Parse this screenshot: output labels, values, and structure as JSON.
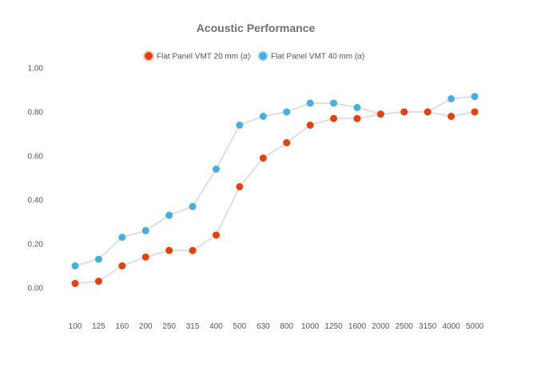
{
  "chart_data": {
    "type": "line",
    "title": "Acoustic Performance",
    "xlabel": "",
    "ylabel": "",
    "ylim": [
      0,
      1
    ],
    "yticks": [
      "0.00",
      "0.20",
      "0.40",
      "0.60",
      "0.80",
      "1.00"
    ],
    "ytick_values": [
      0,
      0.2,
      0.4,
      0.6,
      0.8,
      1.0
    ],
    "categories": [
      "100",
      "125",
      "160",
      "200",
      "250",
      "315",
      "400",
      "500",
      "630",
      "800",
      "1000",
      "1250",
      "1600",
      "2000",
      "2500",
      "3150",
      "4000",
      "5000"
    ],
    "legend_position": "top-center",
    "grid": false,
    "series": [
      {
        "name": "Flat Panel VMT 20 mm (α)",
        "color": "#e8400c",
        "values": [
          0.02,
          0.03,
          0.1,
          0.14,
          0.17,
          0.17,
          0.24,
          0.46,
          0.59,
          0.66,
          0.74,
          0.77,
          0.77,
          0.79,
          0.8,
          0.8,
          0.78,
          0.8
        ]
      },
      {
        "name": "Flat Panel VMT 40 mm (α)",
        "color": "#44afe0",
        "values": [
          0.1,
          0.13,
          0.23,
          0.26,
          0.33,
          0.37,
          0.54,
          0.74,
          0.78,
          0.8,
          0.84,
          0.84,
          0.82,
          0.79,
          0.8,
          0.8,
          0.86,
          0.87
        ]
      }
    ]
  }
}
